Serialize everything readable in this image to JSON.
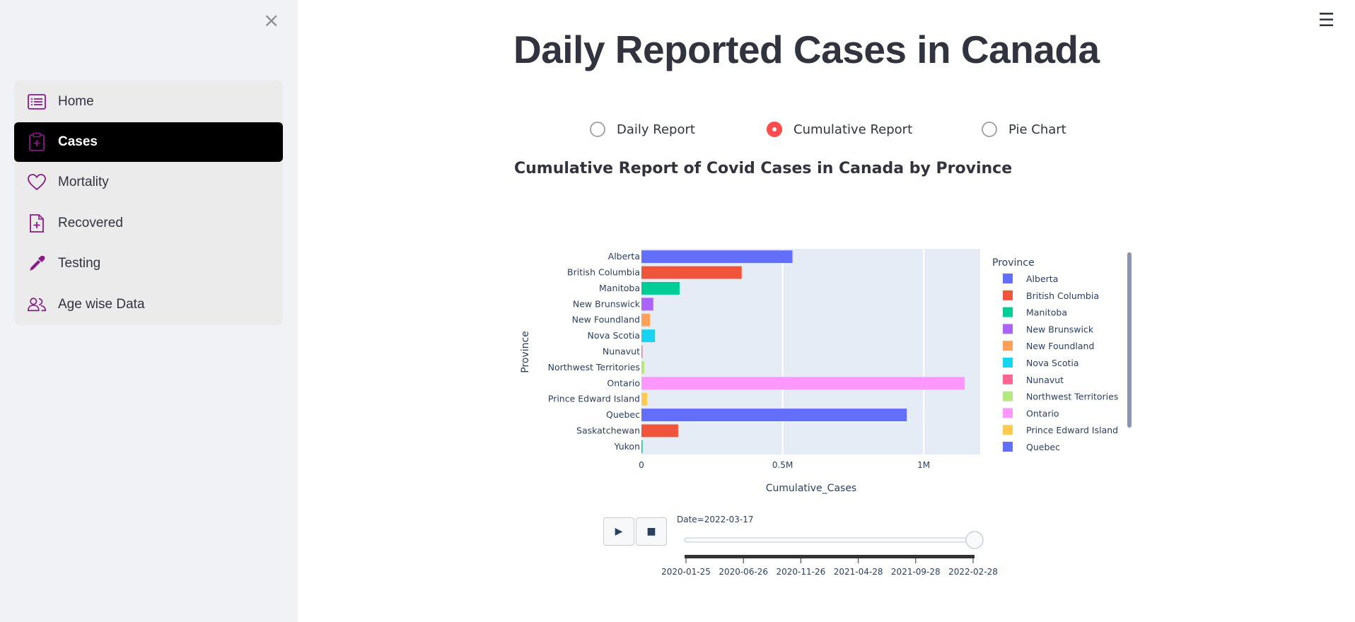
{
  "sidebar": {
    "close_icon": "×",
    "items": [
      {
        "label": "Home",
        "icon": "list-icon",
        "active": false
      },
      {
        "label": "Cases",
        "icon": "clipboard-plus-icon",
        "active": true
      },
      {
        "label": "Mortality",
        "icon": "heart-icon",
        "active": false
      },
      {
        "label": "Recovered",
        "icon": "file-plus-icon",
        "active": false
      },
      {
        "label": "Testing",
        "icon": "eyedropper-icon",
        "active": false
      },
      {
        "label": "Age wise Data",
        "icon": "people-icon",
        "active": false
      }
    ],
    "icon_color": "#8a1a8a"
  },
  "header": {
    "menu_icon": "☰"
  },
  "main": {
    "title": "Daily Reported Cases in Canada",
    "radio_options": [
      {
        "label": "Daily Report",
        "selected": false
      },
      {
        "label": "Cumulative Report",
        "selected": true
      },
      {
        "label": "Pie Chart",
        "selected": false
      }
    ],
    "subtitle": "Cumulative Report of Covid Cases in Canada by Province"
  },
  "chart_data": {
    "type": "bar",
    "orientation": "horizontal",
    "xlabel": "Cumulative_Cases",
    "ylabel": "Province",
    "xlim": [
      0,
      1200000
    ],
    "x_ticks": [
      {
        "value": 0,
        "label": "0"
      },
      {
        "value": 500000,
        "label": "0.5M"
      },
      {
        "value": 1000000,
        "label": "1M"
      }
    ],
    "grid": true,
    "legend_title": "Province",
    "legend_position": "right",
    "categories": [
      "Alberta",
      "British Columbia",
      "Manitoba",
      "New Brunswick",
      "New Foundland",
      "Nova Scotia",
      "Nunavut",
      "Northwest Territories",
      "Ontario",
      "Prince Edward Island",
      "Quebec",
      "Saskatchewan",
      "Yukon"
    ],
    "values": [
      535000,
      355000,
      135000,
      42000,
      30000,
      48000,
      3500,
      10000,
      1145000,
      20000,
      940000,
      130000,
      4000
    ],
    "colors": [
      "#636efa",
      "#ef553b",
      "#00cc96",
      "#ab63fa",
      "#ffa15a",
      "#19d3f3",
      "#ff6692",
      "#b6e880",
      "#ff97ff",
      "#fecb52",
      "#636efa",
      "#ef553b",
      "#00cc96"
    ],
    "legend_entries": [
      "Alberta",
      "British Columbia",
      "Manitoba",
      "New Brunswick",
      "New Foundland",
      "Nova Scotia",
      "Nunavut",
      "Northwest Territories",
      "Ontario",
      "Prince Edward Island",
      "Quebec"
    ],
    "animation": {
      "play_icon": "▶",
      "stop_icon": "■",
      "current_label": "Date=2022-03-17",
      "slider_fraction": 1.0,
      "slider_ticks": [
        "2020-01-25",
        "2020-06-26",
        "2020-11-26",
        "2021-04-28",
        "2021-09-28",
        "2022-02-28"
      ]
    }
  }
}
